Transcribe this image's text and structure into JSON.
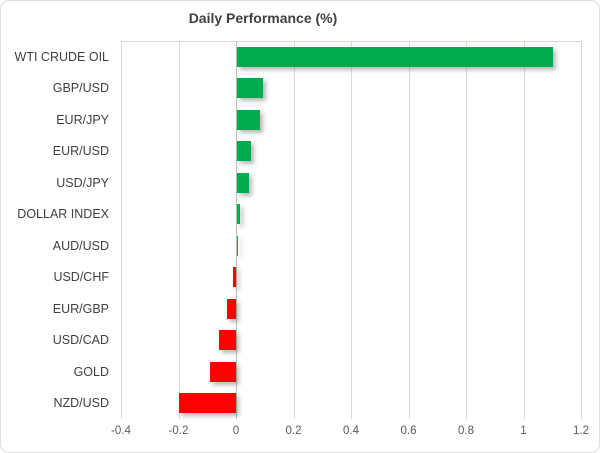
{
  "title": "Daily Performance (%)",
  "colors": {
    "positive_bar": "#00AB4E",
    "negative_bar": "#FF0000",
    "gridline": "#D9D9D9",
    "zero_line": "#BDBDBD",
    "title_text": "#404040",
    "category_text": "#3F3F3F",
    "tick_text": "#595959",
    "frame_border": "#DCDCDC"
  },
  "chart_data": {
    "type": "bar",
    "orientation": "horizontal",
    "title": "Daily Performance (%)",
    "categories": [
      "WTI CRUDE OIL",
      "GBP/USD",
      "EUR/JPY",
      "EUR/USD",
      "USD/JPY",
      "DOLLAR INDEX",
      "AUD/USD",
      "USD/CHF",
      "EUR/GBP",
      "USD/CAD",
      "GOLD",
      "NZD/USD"
    ],
    "values": [
      1.1,
      0.09,
      0.08,
      0.05,
      0.04,
      0.01,
      0.0,
      -0.01,
      -0.03,
      -0.06,
      -0.09,
      -0.2
    ],
    "xlabel": "",
    "ylabel": "",
    "xlim": [
      -0.4,
      1.2
    ],
    "x_ticks": [
      -0.4,
      -0.2,
      0,
      0.2,
      0.4,
      0.6,
      0.8,
      1,
      1.2
    ],
    "x_tick_labels": [
      "-0.4",
      "-0.2",
      "0",
      "0.2",
      "0.4",
      "0.6",
      "0.8",
      "1",
      "1.2"
    ],
    "grid": true,
    "legend": false,
    "value_axis_position": "bottom",
    "category_axis_position": "left"
  }
}
